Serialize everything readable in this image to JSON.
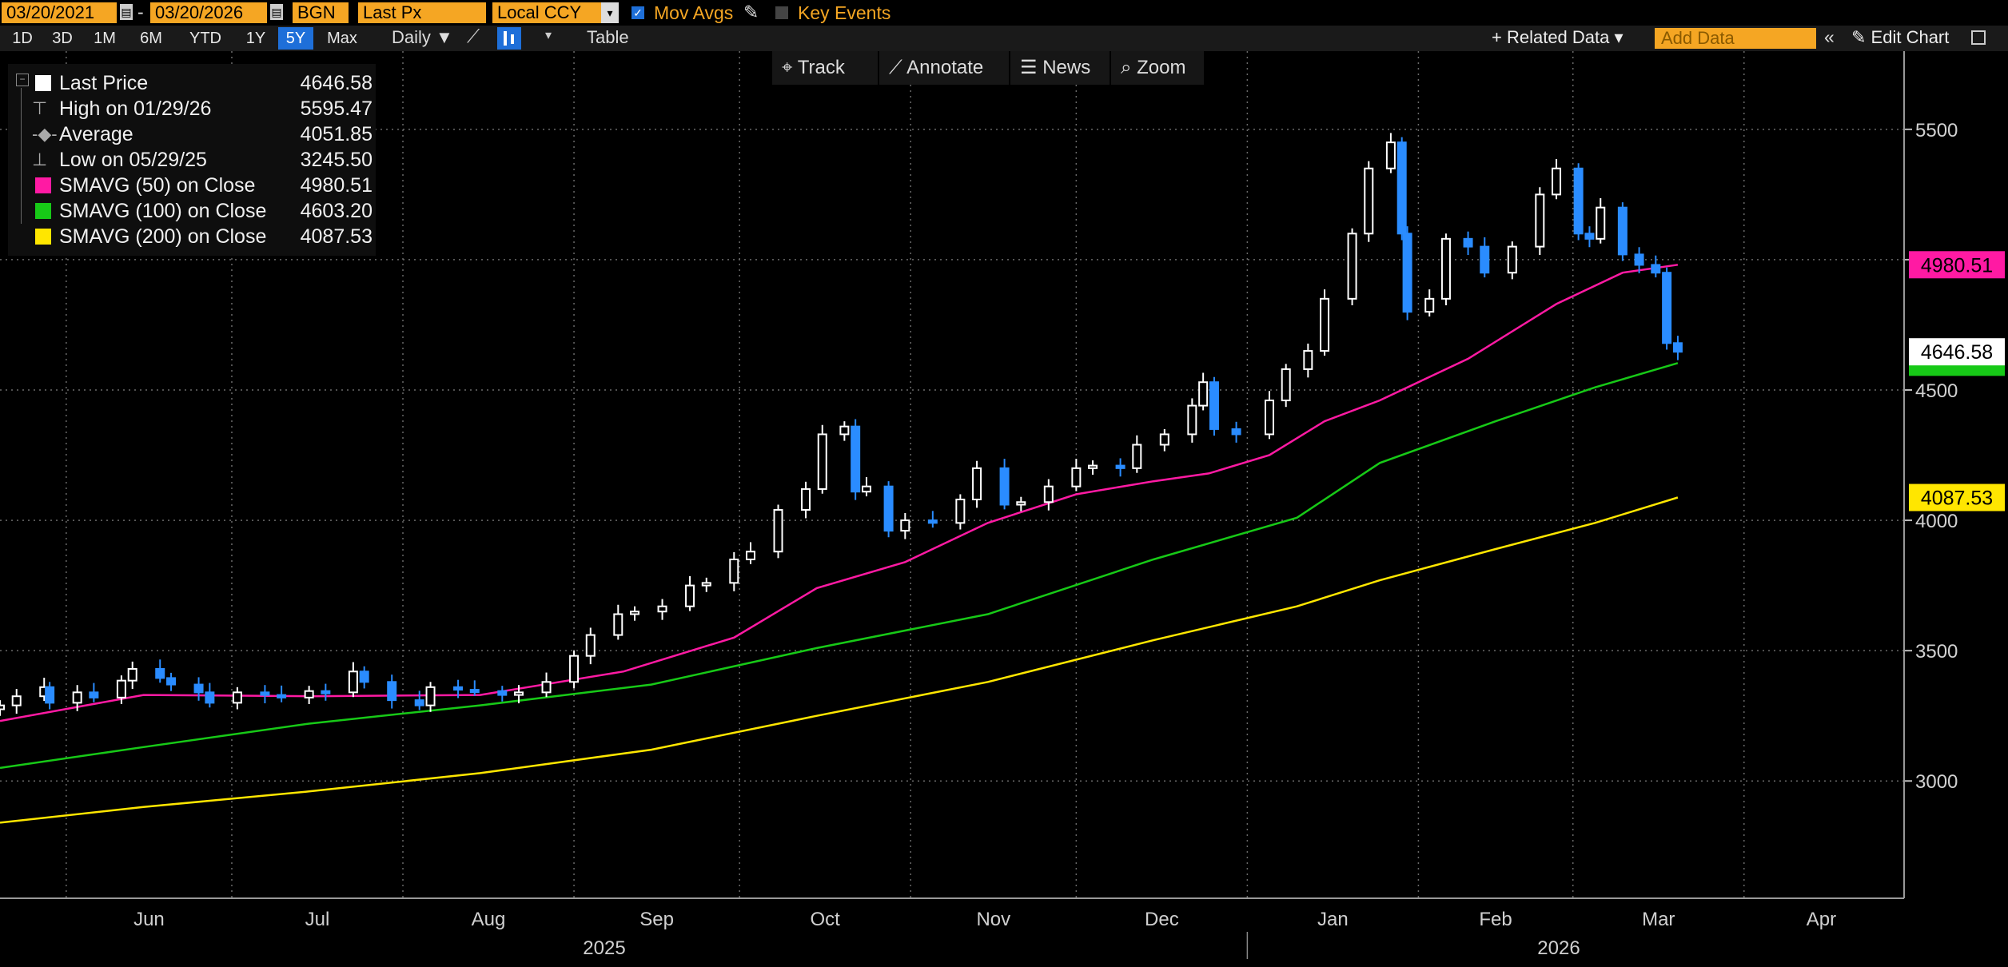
{
  "toolbar": {
    "start_date": "03/20/2021",
    "end_date": "03/20/2026",
    "source": "BGN",
    "field": "Last Px",
    "currency": "Local CCY",
    "mov_avgs_label": "Mov Avgs",
    "key_events_label": "Key Events",
    "related_data": "+ Related Data",
    "add_data_placeholder": "Add Data",
    "edit_chart": "Edit Chart",
    "table": "Table",
    "frequency": "Daily"
  },
  "ranges": [
    {
      "label": "1D",
      "active": false
    },
    {
      "label": "3D",
      "active": false
    },
    {
      "label": "1M",
      "active": false
    },
    {
      "label": "6M",
      "active": false
    },
    {
      "label": "YTD",
      "active": false
    },
    {
      "label": "1Y",
      "active": false
    },
    {
      "label": "5Y",
      "active": true
    },
    {
      "label": "Max",
      "active": false
    }
  ],
  "chart_tools": {
    "track": "Track",
    "annotate": "Annotate",
    "news": "News",
    "zoom": "Zoom"
  },
  "legend": [
    {
      "label": "Last Price",
      "value": "4646.58",
      "color": "#ffffff"
    },
    {
      "label": "High on 01/29/26",
      "value": "5595.47"
    },
    {
      "label": "Average",
      "value": "4051.85"
    },
    {
      "label": "Low on 05/29/25",
      "value": "3245.50"
    },
    {
      "label": "SMAVG (50)  on Close",
      "value": "4980.51",
      "color": "#ff1aa3"
    },
    {
      "label": "SMAVG (100)  on Close",
      "value": "4603.20",
      "color": "#17c917"
    },
    {
      "label": "SMAVG (200)  on Close",
      "value": "4087.53",
      "color": "#ffe600"
    }
  ],
  "badges": {
    "sma50": "4980.51",
    "last": "4646.58",
    "sma200": "4087.53"
  },
  "colors": {
    "up": "#ffffff",
    "down": "#2a8cff",
    "sma50": "#ff1aa3",
    "sma100": "#17c917",
    "sma200": "#ffe600",
    "accent": "#f5a623"
  },
  "chart_data": {
    "type": "line",
    "frequency": "Daily",
    "x_axis": {
      "tick_labels": [
        "Jun",
        "Jul",
        "Aug",
        "Sep",
        "Oct",
        "Nov",
        "Dec",
        "Jan",
        "Feb",
        "Mar",
        "Apr"
      ],
      "year_labels": [
        "2025",
        "2026"
      ],
      "range": [
        "2025-05-20",
        "2026-04-30"
      ]
    },
    "y_axis": {
      "tick_labels": [
        "3000",
        "3500",
        "4000",
        "4500",
        "5000",
        "5500"
      ],
      "range": [
        2550,
        5800
      ],
      "position": "right"
    },
    "grid": true,
    "legend_position": "top-left",
    "series": [
      {
        "name": "Last Price",
        "style": "candlestick",
        "points": [
          [
            "2025-05-20",
            3290
          ],
          [
            "2025-05-23",
            3325
          ],
          [
            "2025-05-28",
            3360
          ],
          [
            "2025-05-29",
            3300
          ],
          [
            "2025-06-03",
            3340
          ],
          [
            "2025-06-06",
            3320
          ],
          [
            "2025-06-11",
            3385
          ],
          [
            "2025-06-13",
            3430
          ],
          [
            "2025-06-18",
            3395
          ],
          [
            "2025-06-20",
            3370
          ],
          [
            "2025-06-25",
            3340
          ],
          [
            "2025-06-27",
            3300
          ],
          [
            "2025-07-02",
            3340
          ],
          [
            "2025-07-07",
            3330
          ],
          [
            "2025-07-10",
            3320
          ],
          [
            "2025-07-15",
            3345
          ],
          [
            "2025-07-18",
            3340
          ],
          [
            "2025-07-23",
            3420
          ],
          [
            "2025-07-25",
            3380
          ],
          [
            "2025-07-30",
            3310
          ],
          [
            "2025-08-04",
            3290
          ],
          [
            "2025-08-06",
            3360
          ],
          [
            "2025-08-11",
            3350
          ],
          [
            "2025-08-14",
            3345
          ],
          [
            "2025-08-19",
            3330
          ],
          [
            "2025-08-22",
            3340
          ],
          [
            "2025-08-27",
            3380
          ],
          [
            "2025-09-01",
            3480
          ],
          [
            "2025-09-04",
            3560
          ],
          [
            "2025-09-09",
            3640
          ],
          [
            "2025-09-12",
            3650
          ],
          [
            "2025-09-17",
            3670
          ],
          [
            "2025-09-22",
            3750
          ],
          [
            "2025-09-25",
            3760
          ],
          [
            "2025-09-30",
            3850
          ],
          [
            "2025-10-03",
            3880
          ],
          [
            "2025-10-08",
            4040
          ],
          [
            "2025-10-13",
            4120
          ],
          [
            "2025-10-16",
            4330
          ],
          [
            "2025-10-20",
            4360
          ],
          [
            "2025-10-22",
            4110
          ],
          [
            "2025-10-24",
            4130
          ],
          [
            "2025-10-28",
            3960
          ],
          [
            "2025-10-31",
            4000
          ],
          [
            "2025-11-05",
            3990
          ],
          [
            "2025-11-10",
            4080
          ],
          [
            "2025-11-13",
            4200
          ],
          [
            "2025-11-18",
            4060
          ],
          [
            "2025-11-21",
            4070
          ],
          [
            "2025-11-26",
            4130
          ],
          [
            "2025-12-01",
            4200
          ],
          [
            "2025-12-04",
            4210
          ],
          [
            "2025-12-09",
            4200
          ],
          [
            "2025-12-12",
            4290
          ],
          [
            "2025-12-17",
            4330
          ],
          [
            "2025-12-22",
            4440
          ],
          [
            "2025-12-24",
            4530
          ],
          [
            "2025-12-26",
            4350
          ],
          [
            "2025-12-30",
            4330
          ],
          [
            "2026-01-05",
            4460
          ],
          [
            "2026-01-08",
            4580
          ],
          [
            "2026-01-12",
            4650
          ],
          [
            "2026-01-15",
            4850
          ],
          [
            "2026-01-20",
            5100
          ],
          [
            "2026-01-23",
            5350
          ],
          [
            "2026-01-27",
            5450
          ],
          [
            "2026-01-29",
            5100
          ],
          [
            "2026-01-30",
            4800
          ],
          [
            "2026-02-03",
            4850
          ],
          [
            "2026-02-06",
            5080
          ],
          [
            "2026-02-10",
            5050
          ],
          [
            "2026-02-13",
            4950
          ],
          [
            "2026-02-18",
            5050
          ],
          [
            "2026-02-23",
            5250
          ],
          [
            "2026-02-26",
            5350
          ],
          [
            "2026-03-02",
            5100
          ],
          [
            "2026-03-04",
            5080
          ],
          [
            "2026-03-06",
            5200
          ],
          [
            "2026-03-10",
            5020
          ],
          [
            "2026-03-13",
            4980
          ],
          [
            "2026-03-16",
            4950
          ],
          [
            "2026-03-18",
            4680
          ],
          [
            "2026-03-20",
            4646.58
          ]
        ]
      },
      {
        "name": "SMAVG (50)  on Close",
        "style": "line",
        "color": "#ff1aa3",
        "points": [
          [
            "2025-05-20",
            3230
          ],
          [
            "2025-06-15",
            3330
          ],
          [
            "2025-07-15",
            3325
          ],
          [
            "2025-08-15",
            3330
          ],
          [
            "2025-09-10",
            3420
          ],
          [
            "2025-09-30",
            3550
          ],
          [
            "2025-10-15",
            3740
          ],
          [
            "2025-10-31",
            3840
          ],
          [
            "2025-11-15",
            3990
          ],
          [
            "2025-12-01",
            4100
          ],
          [
            "2025-12-15",
            4150
          ],
          [
            "2025-12-25",
            4180
          ],
          [
            "2026-01-05",
            4250
          ],
          [
            "2026-01-15",
            4380
          ],
          [
            "2026-01-25",
            4460
          ],
          [
            "2026-02-10",
            4620
          ],
          [
            "2026-02-26",
            4830
          ],
          [
            "2026-03-10",
            4950
          ],
          [
            "2026-03-20",
            4980.51
          ]
        ]
      },
      {
        "name": "SMAVG (100)  on Close",
        "style": "line",
        "color": "#17c917",
        "points": [
          [
            "2025-05-20",
            3050
          ],
          [
            "2025-06-15",
            3130
          ],
          [
            "2025-07-15",
            3220
          ],
          [
            "2025-08-15",
            3290
          ],
          [
            "2025-09-15",
            3370
          ],
          [
            "2025-10-15",
            3510
          ],
          [
            "2025-11-15",
            3640
          ],
          [
            "2025-12-15",
            3850
          ],
          [
            "2026-01-10",
            4010
          ],
          [
            "2026-01-25",
            4220
          ],
          [
            "2026-02-15",
            4380
          ],
          [
            "2026-03-05",
            4510
          ],
          [
            "2026-03-20",
            4603.2
          ]
        ]
      },
      {
        "name": "SMAVG (200)  on Close",
        "style": "line",
        "color": "#ffe600",
        "points": [
          [
            "2025-05-20",
            2840
          ],
          [
            "2025-06-15",
            2900
          ],
          [
            "2025-07-15",
            2960
          ],
          [
            "2025-08-15",
            3030
          ],
          [
            "2025-09-15",
            3120
          ],
          [
            "2025-10-15",
            3250
          ],
          [
            "2025-11-15",
            3380
          ],
          [
            "2025-12-15",
            3540
          ],
          [
            "2026-01-10",
            3670
          ],
          [
            "2026-01-25",
            3770
          ],
          [
            "2026-02-15",
            3890
          ],
          [
            "2026-03-05",
            3990
          ],
          [
            "2026-03-20",
            4087.53
          ]
        ]
      }
    ]
  }
}
